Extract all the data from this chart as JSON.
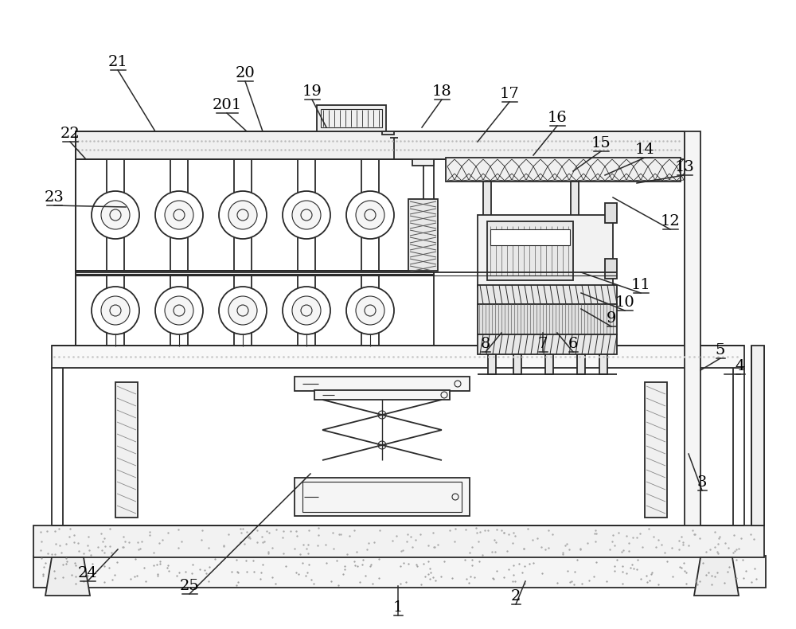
{
  "bg_color": "#ffffff",
  "line_color": "#2a2a2a",
  "label_color": "#000000",
  "fig_width": 10.0,
  "fig_height": 7.9,
  "label_tips": {
    "1": [
      500,
      763,
      500,
      736
    ],
    "2": [
      648,
      749,
      660,
      730
    ],
    "3": [
      882,
      606,
      865,
      570
    ],
    "4": [
      930,
      460,
      910,
      470
    ],
    "5": [
      905,
      440,
      880,
      465
    ],
    "6": [
      720,
      432,
      700,
      418
    ],
    "7": [
      682,
      432,
      682,
      418
    ],
    "8": [
      610,
      432,
      630,
      418
    ],
    "9": [
      768,
      400,
      730,
      388
    ],
    "10": [
      785,
      380,
      730,
      368
    ],
    "11": [
      805,
      358,
      730,
      342
    ],
    "12": [
      842,
      278,
      770,
      248
    ],
    "13": [
      860,
      210,
      800,
      230
    ],
    "14": [
      810,
      188,
      760,
      220
    ],
    "15": [
      755,
      180,
      720,
      215
    ],
    "16": [
      700,
      148,
      670,
      195
    ],
    "17": [
      640,
      118,
      600,
      178
    ],
    "18": [
      555,
      115,
      530,
      160
    ],
    "19": [
      392,
      115,
      410,
      160
    ],
    "20": [
      308,
      92,
      330,
      165
    ],
    "201": [
      285,
      132,
      310,
      165
    ],
    "21": [
      148,
      78,
      195,
      165
    ],
    "22": [
      88,
      168,
      108,
      200
    ],
    "23": [
      68,
      248,
      158,
      260
    ],
    "24": [
      110,
      720,
      148,
      690
    ],
    "25": [
      238,
      736,
      390,
      595
    ]
  }
}
